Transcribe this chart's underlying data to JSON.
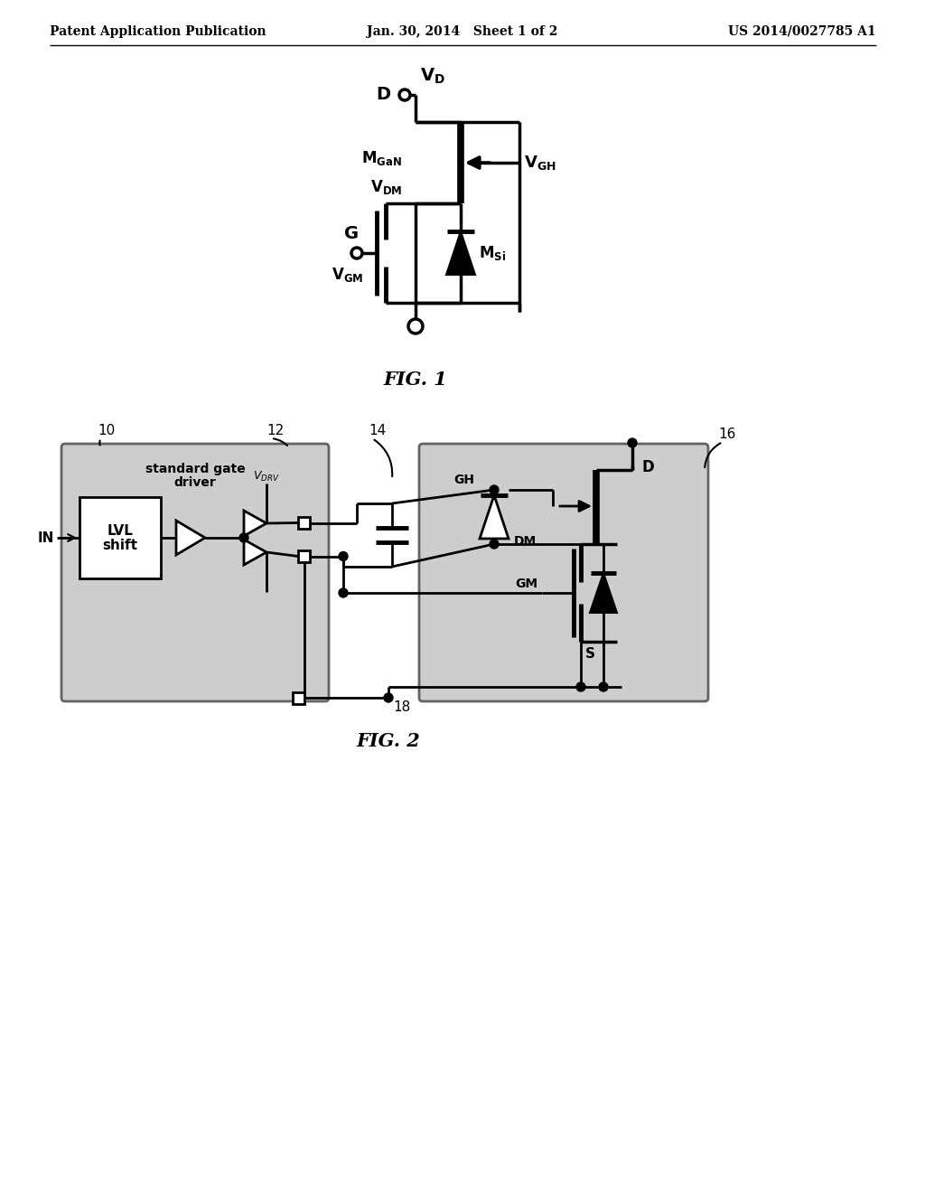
{
  "page_header_left": "Patent Application Publication",
  "page_header_mid": "Jan. 30, 2014   Sheet 1 of 2",
  "page_header_right": "US 2014/0027785 A1",
  "fig1_caption": "FIG. 1",
  "fig2_caption": "FIG. 2",
  "background_color": "#ffffff",
  "line_color": "#000000",
  "text_color": "#000000"
}
